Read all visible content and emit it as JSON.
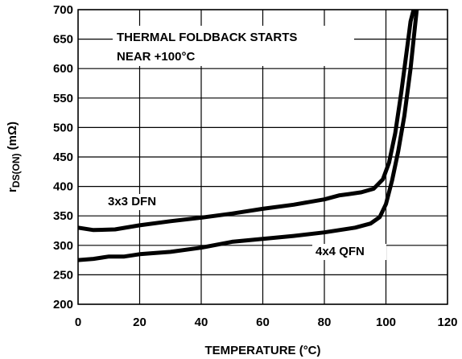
{
  "chart_data": {
    "type": "line",
    "xlabel": "TEMPERATURE (°C)",
    "ylabel_main": "r",
    "ylabel_sub": "DS(ON)",
    "ylabel_unit": " (mΩ)",
    "xlim": [
      0,
      120
    ],
    "ylim": [
      200,
      700
    ],
    "xticks": [
      0,
      20,
      40,
      60,
      80,
      100,
      120
    ],
    "yticks": [
      200,
      250,
      300,
      350,
      400,
      450,
      500,
      550,
      600,
      650,
      700
    ],
    "grid": true,
    "annotation": [
      "THERMAL FOLDBACK STARTS",
      "NEAR +100°C"
    ],
    "series": [
      {
        "name": "3x3 DFN",
        "x": [
          0,
          5,
          12,
          20,
          30,
          40,
          50,
          60,
          70,
          80,
          85,
          88,
          92,
          96,
          99,
          101,
          103,
          105,
          107,
          108,
          109
        ],
        "y": [
          330,
          326,
          327,
          334,
          341,
          347,
          354,
          362,
          369,
          378,
          385,
          387,
          390,
          396,
          412,
          440,
          490,
          560,
          640,
          680,
          700
        ]
      },
      {
        "name": "4x4 QFN",
        "x": [
          0,
          5,
          10,
          15,
          20,
          30,
          40,
          50,
          60,
          70,
          80,
          90,
          95,
          98,
          100,
          102,
          104,
          106,
          108,
          109,
          110
        ],
        "y": [
          275,
          277,
          281,
          281,
          285,
          289,
          296,
          306,
          311,
          316,
          322,
          330,
          337,
          348,
          370,
          410,
          460,
          520,
          600,
          650,
          700
        ]
      }
    ]
  }
}
